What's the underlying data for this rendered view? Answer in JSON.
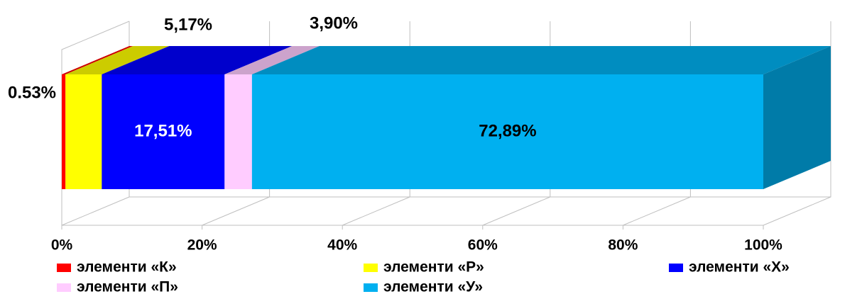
{
  "chart_data": {
    "type": "stacked_bar_3d",
    "orientation": "horizontal",
    "xlim": [
      0,
      100
    ],
    "xticks": [
      {
        "value": 0,
        "label": "0%"
      },
      {
        "value": 20,
        "label": "20%"
      },
      {
        "value": 40,
        "label": "40%"
      },
      {
        "value": 60,
        "label": "60%"
      },
      {
        "value": 80,
        "label": "80%"
      },
      {
        "value": 100,
        "label": "100%"
      }
    ],
    "grid": true,
    "legend": "bottom",
    "series": [
      {
        "name": "элементи «К»",
        "color": "#ff0000",
        "values": [
          0.53
        ],
        "value_labels": [
          "0.53%"
        ]
      },
      {
        "name": "элементи «Р»",
        "color": "#ffff00",
        "values": [
          5.17
        ],
        "value_labels": [
          "5,17%"
        ]
      },
      {
        "name": "элементи «Х»",
        "color": "#0000ff",
        "values": [
          17.51
        ],
        "value_labels": [
          "17,51%"
        ]
      },
      {
        "name": "элементи «П»",
        "color": "#ffccff",
        "values": [
          3.9
        ],
        "value_labels": [
          "3,90%"
        ]
      },
      {
        "name": "элементи «У»",
        "color": "#00b0f0",
        "values": [
          72.89
        ],
        "value_labels": [
          "72,89%"
        ]
      }
    ]
  }
}
